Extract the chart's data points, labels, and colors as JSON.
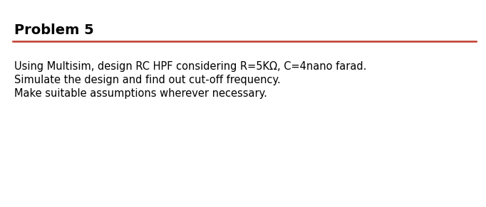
{
  "title": "Problem 5",
  "title_fontsize": 14,
  "title_fontweight": "bold",
  "line_color": "#c0392b",
  "line_width": 1.8,
  "body_lines": [
    "Using Multisim, design RC HPF considering R=5KΩ, C=4nano farad.",
    "Simulate the design and find out cut-off frequency.",
    "Make suitable assumptions wherever necessary."
  ],
  "body_fontsize": 10.5,
  "background_color": "#ffffff"
}
